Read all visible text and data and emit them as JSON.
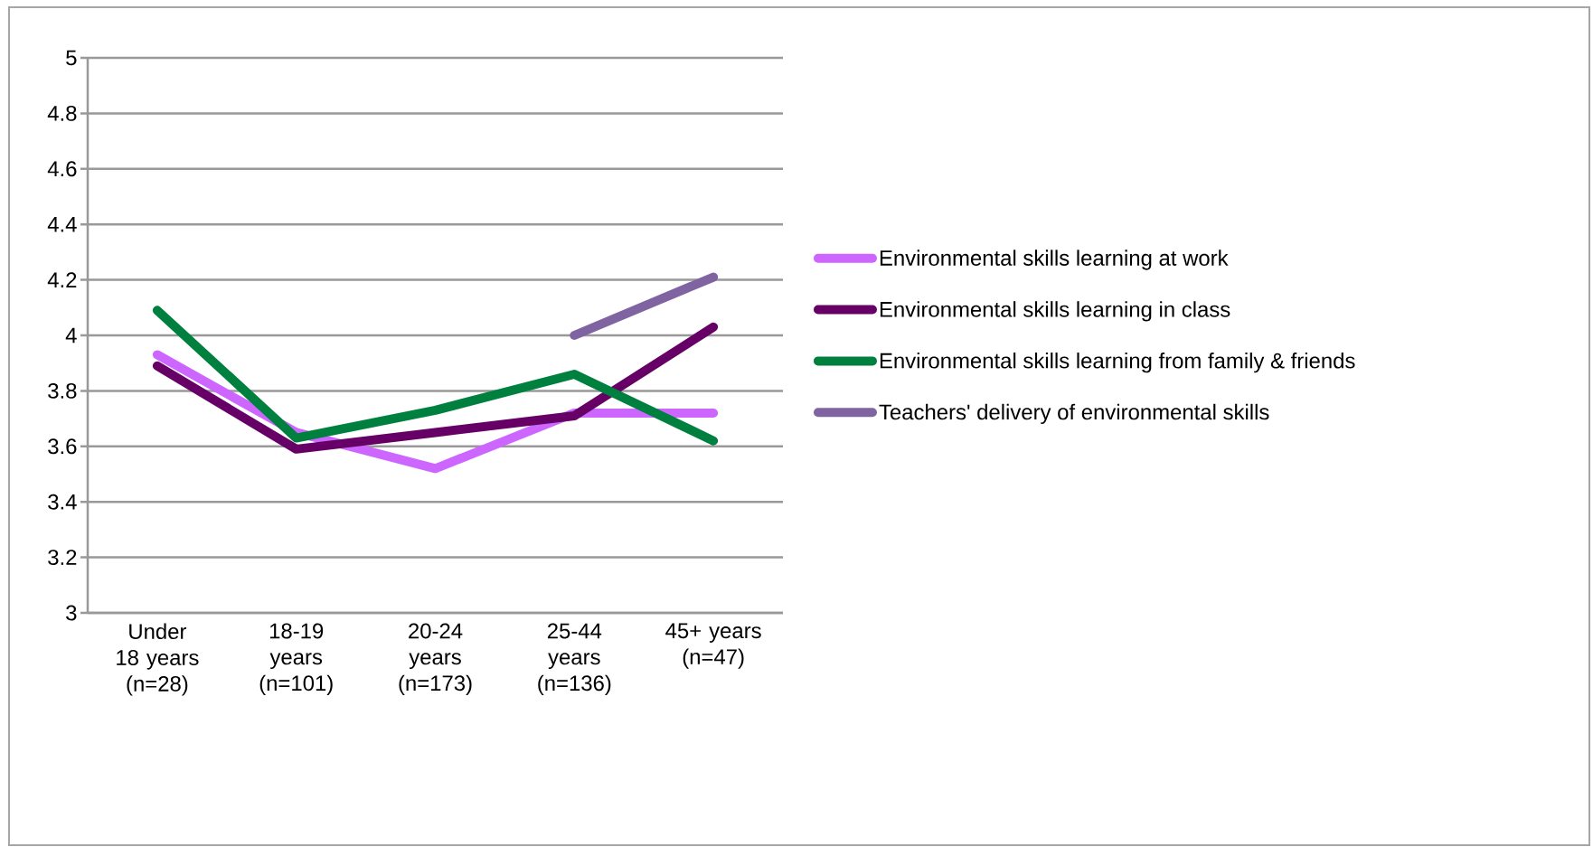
{
  "chart_data": {
    "type": "line",
    "categories": [
      "Under 18 years (n=28)",
      "18-19 years (n=101)",
      "20-24 years (n=173)",
      "25-44 years (n=136)",
      "45+ years (n=47)"
    ],
    "series": [
      {
        "name": "Environmental skills learning at work",
        "color": "#cc66ff",
        "values": [
          3.93,
          3.65,
          3.52,
          3.72,
          3.72
        ]
      },
      {
        "name": "Environmental skills learning in class",
        "color": "#660066",
        "values": [
          3.89,
          3.59,
          3.65,
          3.71,
          4.03
        ]
      },
      {
        "name": "Environmental skills learning from family & friends",
        "color": "#00803f",
        "values": [
          4.09,
          3.63,
          3.73,
          3.86,
          3.62
        ]
      },
      {
        "name": "Teachers' delivery of environmental skills",
        "color": "#8064a2",
        "values": [
          null,
          null,
          null,
          4.0,
          4.21
        ]
      }
    ],
    "ylim": [
      3,
      5
    ],
    "yticks": [
      3,
      3.2,
      3.4,
      3.6,
      3.8,
      4,
      4.2,
      4.4,
      4.6,
      4.8,
      5
    ],
    "grid": "y",
    "legend": "right",
    "marker": "none",
    "line_style": "solid"
  }
}
